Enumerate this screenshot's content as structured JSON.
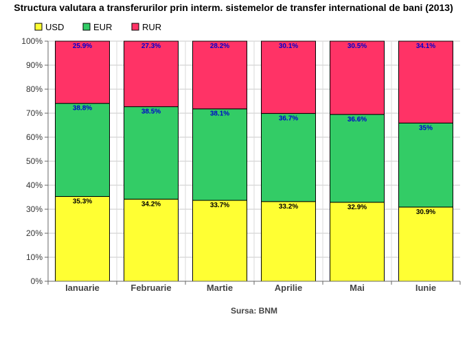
{
  "chart_data": {
    "type": "bar",
    "stacked": true,
    "title": "Structura valutara a transferurilor prin interm. sistemelor de transfer international de bani (2013)",
    "categories": [
      "Ianuarie",
      "Februarie",
      "Martie",
      "Aprilie",
      "Mai",
      "Iunie"
    ],
    "series": [
      {
        "name": "USD",
        "color": "#ffff33",
        "values": [
          35.3,
          34.2,
          33.7,
          33.2,
          32.9,
          30.9
        ],
        "labels": [
          "35.3%",
          "34.2%",
          "33.7%",
          "33.2%",
          "32.9%",
          "30.9%"
        ],
        "label_color": "#000000"
      },
      {
        "name": "EUR",
        "color": "#33cc66",
        "values": [
          38.8,
          38.5,
          38.1,
          36.7,
          36.6,
          35
        ],
        "labels": [
          "38.8%",
          "38.5%",
          "38.1%",
          "36.7%",
          "36.6%",
          "35%"
        ],
        "label_color": "#0000cc"
      },
      {
        "name": "RUR",
        "color": "#ff3366",
        "values": [
          25.9,
          27.3,
          28.2,
          30.1,
          30.5,
          34.1
        ],
        "labels": [
          "25.9%",
          "27.3%",
          "28.2%",
          "30.1%",
          "30.5%",
          "34.1%"
        ],
        "label_color": "#0000cc"
      }
    ],
    "y_ticks": [
      "0%",
      "10%",
      "20%",
      "30%",
      "40%",
      "50%",
      "60%",
      "70%",
      "80%",
      "90%",
      "100%"
    ],
    "ylim": [
      0,
      100
    ],
    "grid": true,
    "legend_position": "top-left",
    "source": "Sursa: BNM"
  }
}
